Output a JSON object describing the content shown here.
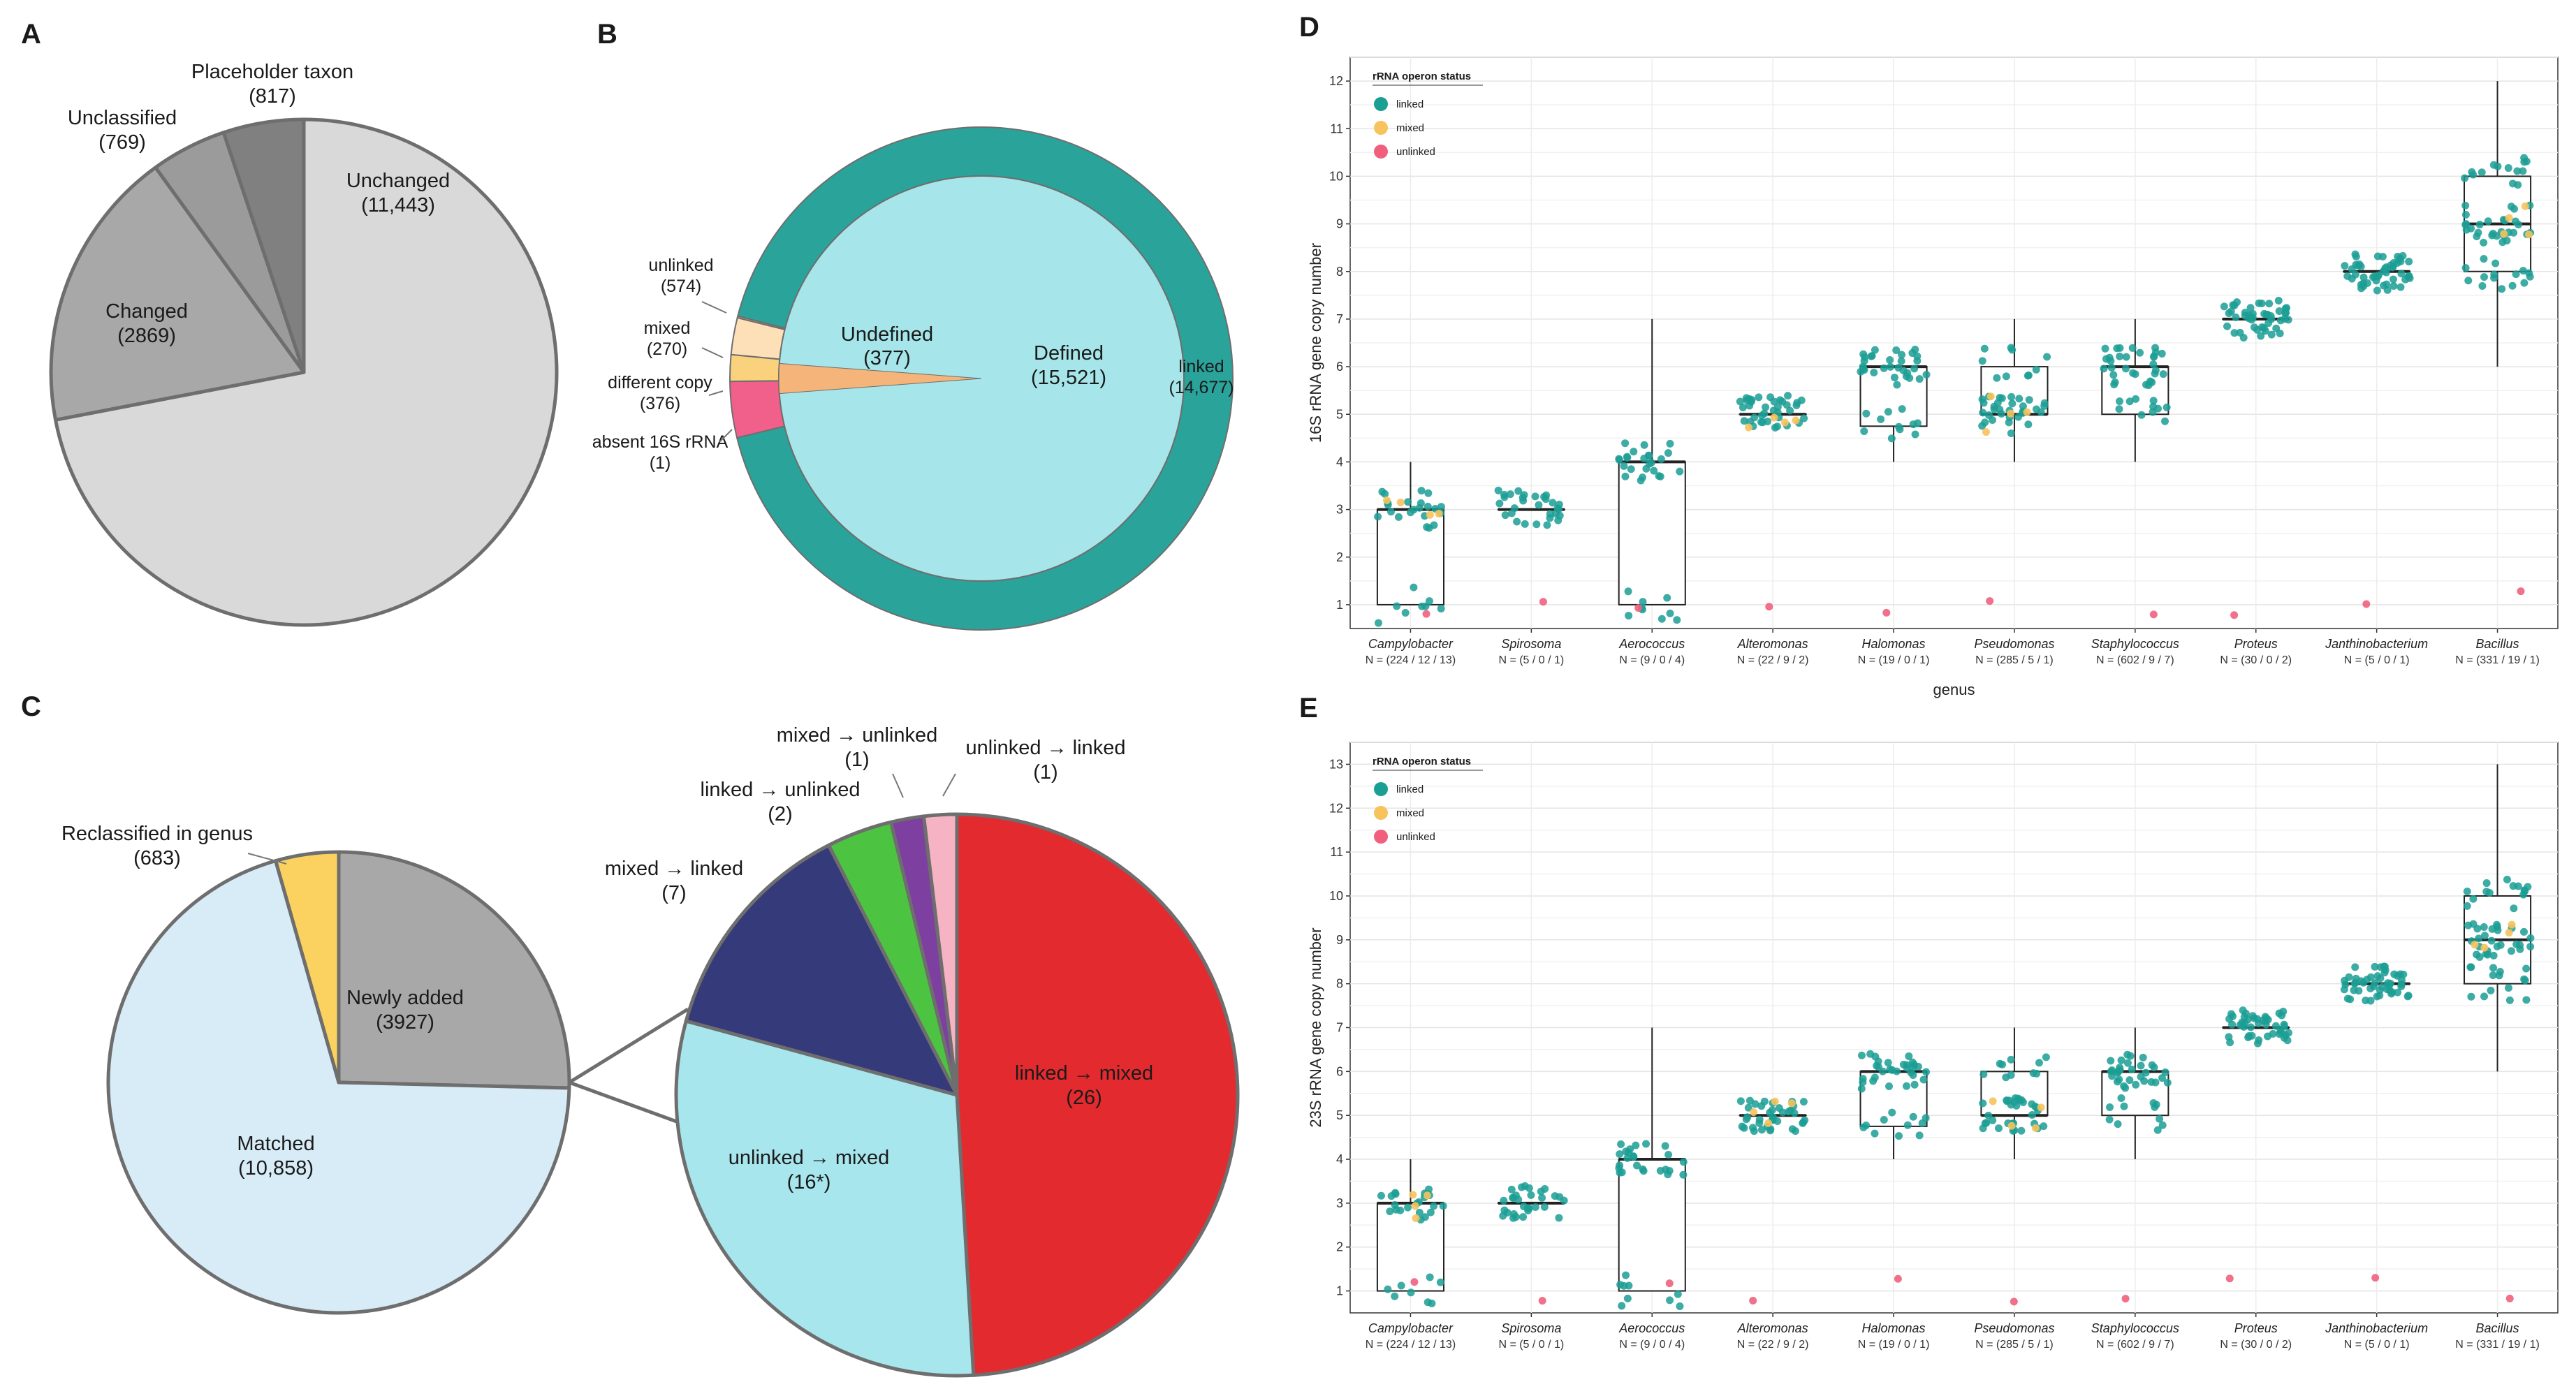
{
  "colors": {
    "linked": "#1b9e94",
    "mixed": "#f6c35c",
    "unlinked": "#f0607d",
    "teal_ring": "#2aa39b",
    "grey_light": "#d9d9d9",
    "grey_mid": "#a8a8a8",
    "grey_dark": "#8a8a8a"
  },
  "panel_letters": [
    "A",
    "B",
    "C",
    "D",
    "E"
  ],
  "chart_data": [
    {
      "panel": "A",
      "type": "pie",
      "slices": [
        {
          "label": "Unchanged",
          "value": 11443,
          "value_text": "(11,443)",
          "color": "#d9d9d9"
        },
        {
          "label": "Changed",
          "value": 2869,
          "value_text": "(2869)",
          "color": "#a8a8a8"
        },
        {
          "label": "Unclassified",
          "value": 769,
          "value_text": "(769)",
          "color": "#9b9b9b"
        },
        {
          "label": "Placeholder taxon",
          "value": 817,
          "value_text": "(817)",
          "color": "#808080"
        }
      ]
    },
    {
      "panel": "B",
      "type": "pie",
      "inner": [
        {
          "label": "Defined",
          "value": 15521,
          "value_text": "(15,521)",
          "color": "#a6e6ea"
        },
        {
          "label": "Undefined",
          "value": 377,
          "value_text": "(377)",
          "color": "#f4b47a"
        }
      ],
      "outer": [
        {
          "label": "linked",
          "value": 14677,
          "value_text": "(14,677)",
          "color": "#2aa39b"
        },
        {
          "label": "unlinked",
          "value": 574,
          "value_text": "(574)",
          "color": "#f0608a"
        },
        {
          "label": "mixed",
          "value": 270,
          "value_text": "(270)",
          "color": "#fad27e"
        },
        {
          "label": "different copy",
          "value": 376,
          "value_text": "(376)",
          "color": "#fde0b8"
        },
        {
          "label": "absent 16S rRNA",
          "value": 1,
          "value_text": "(1)",
          "color": "#f4b47a"
        }
      ]
    },
    {
      "panel": "C",
      "type": "pie",
      "main": [
        {
          "label": "Newly added",
          "value": 3927,
          "value_text": "(3927)",
          "color": "#a8a8a8"
        },
        {
          "label": "Matched",
          "value": 10858,
          "value_text": "(10,858)",
          "color": "#d8ecf8"
        },
        {
          "label": "Reclassified in genus",
          "value": 683,
          "value_text": "(683)",
          "color": "#fbd25f"
        }
      ],
      "detail": [
        {
          "label": "linked → mixed",
          "value": 26,
          "value_text": "(26)",
          "color": "#e32b2f"
        },
        {
          "label": "unlinked → mixed",
          "value": 16,
          "value_text": "(16*)",
          "color": "#a8e6ee"
        },
        {
          "label": "mixed → linked",
          "value": 7,
          "value_text": "(7)",
          "color": "#353a7a"
        },
        {
          "label": "linked → unlinked",
          "value": 2,
          "value_text": "(2)",
          "color": "#4cc441"
        },
        {
          "label": "mixed → unlinked",
          "value": 1,
          "value_text": "(1)",
          "color": "#7d3fa0"
        },
        {
          "label": "unlinked → linked",
          "value": 1,
          "value_text": "(1)",
          "color": "#f5b3c4"
        }
      ]
    },
    {
      "panel": "D",
      "type": "box",
      "ylabel": "16S rRNA gene copy number",
      "xlabel": "genus",
      "ylim": [
        0.5,
        12.5
      ],
      "yticks": [
        1,
        2,
        3,
        4,
        5,
        6,
        7,
        8,
        9,
        10,
        11,
        12
      ],
      "legend": {
        "title": "rRNA operon status",
        "items": [
          "linked",
          "mixed",
          "unlinked"
        ]
      },
      "genera": [
        {
          "name": "Campylobacter",
          "n_text": "N = (224 / 12 / 13)",
          "q1": 1,
          "median": 3,
          "q3": 3,
          "lo": 1,
          "hi": 4
        },
        {
          "name": "Spirosoma",
          "n_text": "N = (5 / 0 / 1)",
          "q1": 3,
          "median": 3,
          "q3": 3,
          "lo": 3,
          "hi": 3
        },
        {
          "name": "Aerococcus",
          "n_text": "N = (9 / 0 / 4)",
          "q1": 1,
          "median": 4,
          "q3": 4,
          "lo": 1,
          "hi": 7
        },
        {
          "name": "Alteromonas",
          "n_text": "N = (22 / 9 / 2)",
          "q1": 5,
          "median": 5,
          "q3": 5,
          "lo": 5,
          "hi": 5
        },
        {
          "name": "Halomonas",
          "n_text": "N = (19 / 0 / 1)",
          "q1": 4.75,
          "median": 6,
          "q3": 6,
          "lo": 4,
          "hi": 6
        },
        {
          "name": "Pseudomonas",
          "n_text": "N = (285 / 5 / 1)",
          "q1": 5,
          "median": 5,
          "q3": 6,
          "lo": 4,
          "hi": 7
        },
        {
          "name": "Staphylococcus",
          "n_text": "N = (602 / 9 / 7)",
          "q1": 5,
          "median": 6,
          "q3": 6,
          "lo": 4,
          "hi": 7
        },
        {
          "name": "Proteus",
          "n_text": "N = (30 / 0 / 2)",
          "q1": 7,
          "median": 7,
          "q3": 7,
          "lo": 7,
          "hi": 7
        },
        {
          "name": "Janthinobacterium",
          "n_text": "N = (5 / 0 / 1)",
          "q1": 8,
          "median": 8,
          "q3": 8,
          "lo": 8,
          "hi": 8
        },
        {
          "name": "Bacillus",
          "n_text": "N = (331 / 19 / 1)",
          "q1": 8,
          "median": 9,
          "q3": 10,
          "lo": 6,
          "hi": 12
        }
      ]
    },
    {
      "panel": "E",
      "type": "box",
      "ylabel": "23S rRNA gene copy number",
      "xlabel": "",
      "ylim": [
        0.5,
        13.5
      ],
      "yticks": [
        1,
        2,
        3,
        4,
        5,
        6,
        7,
        8,
        9,
        10,
        11,
        12,
        13
      ],
      "legend": {
        "title": "rRNA operon status",
        "items": [
          "linked",
          "mixed",
          "unlinked"
        ]
      },
      "genera": [
        {
          "name": "Campylobacter",
          "n_text": "N = (224 / 12 / 13)",
          "q1": 1,
          "median": 3,
          "q3": 3,
          "lo": 1,
          "hi": 4
        },
        {
          "name": "Spirosoma",
          "n_text": "N = (5 / 0 / 1)",
          "q1": 3,
          "median": 3,
          "q3": 3,
          "lo": 3,
          "hi": 3
        },
        {
          "name": "Aerococcus",
          "n_text": "N = (9 / 0 / 4)",
          "q1": 1,
          "median": 4,
          "q3": 4,
          "lo": 1,
          "hi": 7
        },
        {
          "name": "Alteromonas",
          "n_text": "N = (22 / 9 / 2)",
          "q1": 5,
          "median": 5,
          "q3": 5,
          "lo": 5,
          "hi": 5
        },
        {
          "name": "Halomonas",
          "n_text": "N = (19 / 0 / 1)",
          "q1": 4.75,
          "median": 6,
          "q3": 6,
          "lo": 4,
          "hi": 6
        },
        {
          "name": "Pseudomonas",
          "n_text": "N = (285 / 5 / 1)",
          "q1": 5,
          "median": 5,
          "q3": 6,
          "lo": 4,
          "hi": 7
        },
        {
          "name": "Staphylococcus",
          "n_text": "N = (602 / 9 / 7)",
          "q1": 5,
          "median": 6,
          "q3": 6,
          "lo": 4,
          "hi": 7
        },
        {
          "name": "Proteus",
          "n_text": "N = (30 / 0 / 2)",
          "q1": 7,
          "median": 7,
          "q3": 7,
          "lo": 7,
          "hi": 7
        },
        {
          "name": "Janthinobacterium",
          "n_text": "N = (5 / 0 / 1)",
          "q1": 8,
          "median": 8,
          "q3": 8,
          "lo": 8,
          "hi": 8
        },
        {
          "name": "Bacillus",
          "n_text": "N = (331 / 19 / 1)",
          "q1": 8,
          "median": 9,
          "q3": 10,
          "lo": 6,
          "hi": 13
        }
      ]
    }
  ]
}
